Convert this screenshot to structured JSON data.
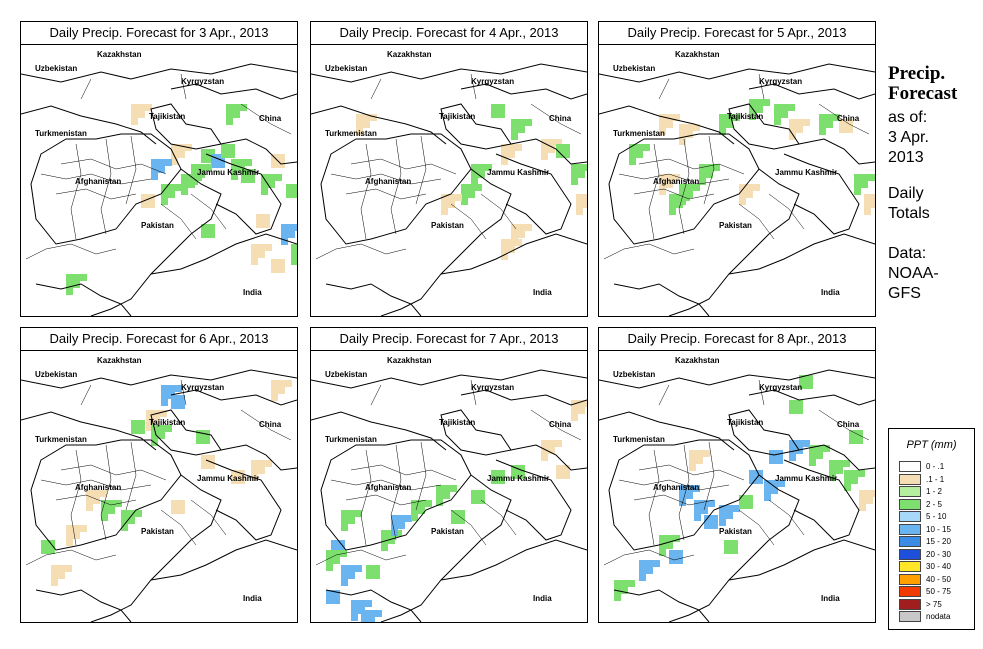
{
  "panels": [
    {
      "title": "Daily Precip. Forecast for  3 Apr., 2013",
      "cells": [
        [
          180,
          105,
          "g"
        ],
        [
          190,
          110,
          "b"
        ],
        [
          200,
          100,
          "g"
        ],
        [
          210,
          115,
          "g"
        ],
        [
          170,
          120,
          "g"
        ],
        [
          220,
          125,
          "g"
        ],
        [
          240,
          130,
          "g"
        ],
        [
          150,
          100,
          "t"
        ],
        [
          130,
          115,
          "b"
        ],
        [
          160,
          130,
          "g"
        ],
        [
          250,
          110,
          "t"
        ],
        [
          235,
          170,
          "t"
        ],
        [
          260,
          180,
          "b"
        ],
        [
          230,
          200,
          "t"
        ],
        [
          180,
          180,
          "g"
        ],
        [
          265,
          140,
          "g"
        ],
        [
          45,
          230,
          "g"
        ],
        [
          110,
          60,
          "t"
        ],
        [
          205,
          60,
          "g"
        ],
        [
          250,
          215,
          "t"
        ],
        [
          270,
          200,
          "g"
        ],
        [
          140,
          140,
          "g"
        ],
        [
          120,
          150,
          "t"
        ]
      ]
    },
    {
      "title": "Daily Precip. Forecast for  4 Apr., 2013",
      "cells": [
        [
          45,
          70,
          "t"
        ],
        [
          180,
          60,
          "g"
        ],
        [
          200,
          75,
          "g"
        ],
        [
          190,
          100,
          "t"
        ],
        [
          230,
          95,
          "t"
        ],
        [
          245,
          100,
          "g"
        ],
        [
          260,
          120,
          "g"
        ],
        [
          150,
          140,
          "g"
        ],
        [
          130,
          150,
          "t"
        ],
        [
          265,
          150,
          "t"
        ],
        [
          200,
          180,
          "t"
        ],
        [
          190,
          195,
          "t"
        ],
        [
          160,
          120,
          "g"
        ]
      ]
    },
    {
      "title": "Daily Precip. Forecast for  5 Apr., 2013",
      "cells": [
        [
          60,
          70,
          "t"
        ],
        [
          80,
          80,
          "t"
        ],
        [
          120,
          70,
          "g"
        ],
        [
          150,
          55,
          "g"
        ],
        [
          175,
          60,
          "g"
        ],
        [
          190,
          75,
          "t"
        ],
        [
          220,
          70,
          "g"
        ],
        [
          240,
          75,
          "t"
        ],
        [
          100,
          120,
          "g"
        ],
        [
          80,
          140,
          "g"
        ],
        [
          70,
          150,
          "g"
        ],
        [
          60,
          130,
          "t"
        ],
        [
          140,
          140,
          "t"
        ],
        [
          255,
          130,
          "g"
        ],
        [
          265,
          150,
          "t"
        ],
        [
          30,
          100,
          "g"
        ]
      ]
    },
    {
      "title": "Daily Precip. Forecast for  6 Apr., 2013",
      "cells": [
        [
          140,
          35,
          "b"
        ],
        [
          150,
          45,
          "b"
        ],
        [
          125,
          60,
          "t"
        ],
        [
          110,
          70,
          "g"
        ],
        [
          130,
          75,
          "g"
        ],
        [
          175,
          80,
          "g"
        ],
        [
          180,
          105,
          "t"
        ],
        [
          210,
          120,
          "t"
        ],
        [
          230,
          110,
          "t"
        ],
        [
          250,
          30,
          "t"
        ],
        [
          65,
          140,
          "t"
        ],
        [
          80,
          150,
          "g"
        ],
        [
          100,
          160,
          "g"
        ],
        [
          45,
          175,
          "t"
        ],
        [
          20,
          190,
          "g"
        ],
        [
          30,
          215,
          "t"
        ],
        [
          150,
          150,
          "t"
        ]
      ]
    },
    {
      "title": "Daily Precip. Forecast for  7 Apr., 2013",
      "cells": [
        [
          20,
          190,
          "b"
        ],
        [
          30,
          215,
          "b"
        ],
        [
          15,
          240,
          "b"
        ],
        [
          40,
          250,
          "b"
        ],
        [
          55,
          215,
          "g"
        ],
        [
          70,
          180,
          "g"
        ],
        [
          80,
          165,
          "b"
        ],
        [
          100,
          150,
          "g"
        ],
        [
          125,
          135,
          "g"
        ],
        [
          140,
          160,
          "g"
        ],
        [
          160,
          140,
          "g"
        ],
        [
          200,
          115,
          "g"
        ],
        [
          230,
          90,
          "t"
        ],
        [
          245,
          115,
          "t"
        ],
        [
          260,
          50,
          "t"
        ],
        [
          30,
          160,
          "g"
        ],
        [
          15,
          200,
          "g"
        ],
        [
          50,
          260,
          "b"
        ],
        [
          180,
          120,
          "g"
        ]
      ]
    },
    {
      "title": "Daily Precip. Forecast for  8 Apr., 2013",
      "cells": [
        [
          80,
          135,
          "b"
        ],
        [
          95,
          150,
          "b"
        ],
        [
          105,
          165,
          "b"
        ],
        [
          120,
          155,
          "b"
        ],
        [
          150,
          120,
          "b"
        ],
        [
          170,
          100,
          "b"
        ],
        [
          190,
          90,
          "b"
        ],
        [
          165,
          130,
          "b"
        ],
        [
          140,
          145,
          "g"
        ],
        [
          210,
          95,
          "g"
        ],
        [
          230,
          110,
          "g"
        ],
        [
          245,
          120,
          "g"
        ],
        [
          60,
          185,
          "g"
        ],
        [
          70,
          200,
          "b"
        ],
        [
          40,
          210,
          "b"
        ],
        [
          15,
          230,
          "g"
        ],
        [
          125,
          190,
          "g"
        ],
        [
          190,
          50,
          "g"
        ],
        [
          200,
          25,
          "g"
        ],
        [
          90,
          100,
          "t"
        ],
        [
          250,
          80,
          "g"
        ],
        [
          260,
          140,
          "t"
        ]
      ]
    }
  ],
  "map_labels": {
    "kazakhstan": "Kazakhstan",
    "uzbekistan": "Uzbekistan",
    "kyrgyzstan": "Kyrgyzstan",
    "tajikistan": "Tajikistan",
    "china": "China",
    "turkmenistan": "Turkmenistan",
    "afghanistan": "Afghanistan",
    "jammu_kashmir": "Jammu Kashmir",
    "pakistan": "Pakistan",
    "india": "India"
  },
  "side": {
    "heading_line1": "Precip.",
    "heading_line2": "Forecast",
    "as_of": "as of:",
    "date_line1": "3 Apr.",
    "date_line2": "2013",
    "daily": "Daily",
    "totals": "Totals",
    "data_label": "Data:",
    "source_line1": "NOAA-",
    "source_line2": "GFS"
  },
  "legend": {
    "title": "PPT (mm)",
    "items": [
      {
        "label": "0 - .1",
        "color": "#ffffff"
      },
      {
        "label": ".1 - 1",
        "color": "#f5deb3"
      },
      {
        "label": "1 - 2",
        "color": "#b4f0a0"
      },
      {
        "label": "2 - 5",
        "color": "#7de06e"
      },
      {
        "label": "5 - 10",
        "color": "#a8d8f8"
      },
      {
        "label": "10 - 15",
        "color": "#6ab4f0"
      },
      {
        "label": "15 - 20",
        "color": "#3c8ce6"
      },
      {
        "label": "20 - 30",
        "color": "#1e50dc"
      },
      {
        "label": "30 - 40",
        "color": "#ffe628"
      },
      {
        "label": "40 - 50",
        "color": "#ffa000"
      },
      {
        "label": "50 - 75",
        "color": "#f03c00"
      },
      {
        "label": "> 75",
        "color": "#a01e1e"
      },
      {
        "label": "nodata",
        "color": "#c8c8c8"
      }
    ]
  },
  "cell_colors": {
    "t": "#f5deb3",
    "g": "#7de06e",
    "b": "#6ab4f0"
  }
}
